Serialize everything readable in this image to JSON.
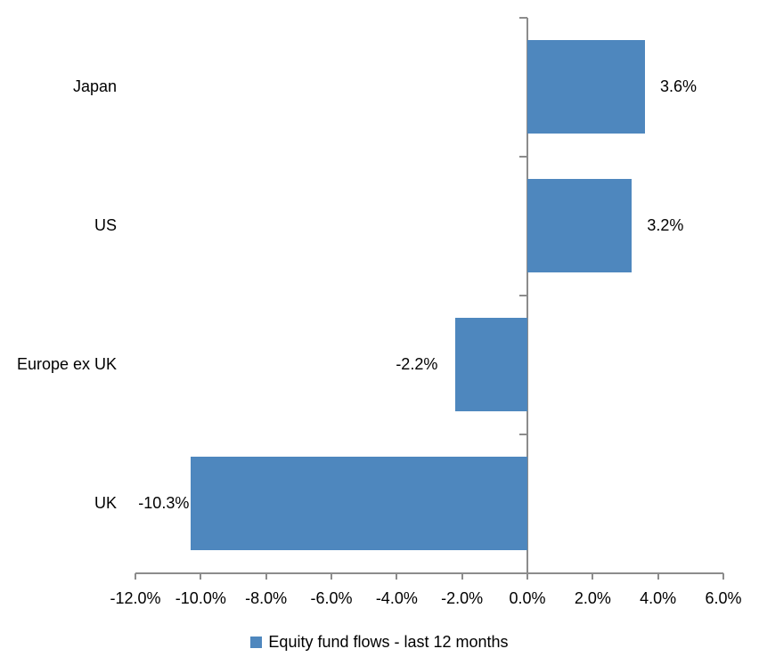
{
  "chart_data": {
    "type": "bar",
    "orientation": "horizontal",
    "title": "",
    "categories": [
      "Japan",
      "US",
      "Europe ex UK",
      "UK"
    ],
    "series": [
      {
        "name": "Equity fund flows - last 12 months",
        "values": [
          3.6,
          3.2,
          -2.2,
          -10.3
        ]
      }
    ],
    "data_labels": [
      "3.6%",
      "3.2%",
      "-2.2%",
      "-10.3%"
    ],
    "xlabel": "",
    "ylabel": "",
    "xlim": [
      -12,
      6
    ],
    "x_ticks": [
      -12,
      -10,
      -8,
      -6,
      -4,
      -2,
      0,
      2,
      4,
      6
    ],
    "x_tick_labels": [
      "-12.0%",
      "-10.0%",
      "-8.0%",
      "-6.0%",
      "-4.0%",
      "-2.0%",
      "0.0%",
      "2.0%",
      "4.0%",
      "6.0%"
    ],
    "grid": false,
    "legend_position": "bottom",
    "legend_label": "Equity fund flows - last 12 months",
    "colors": {
      "bar": "#4E87BE",
      "axis": "#8C8C8C",
      "text": "#000000",
      "background": "#FFFFFF"
    }
  }
}
